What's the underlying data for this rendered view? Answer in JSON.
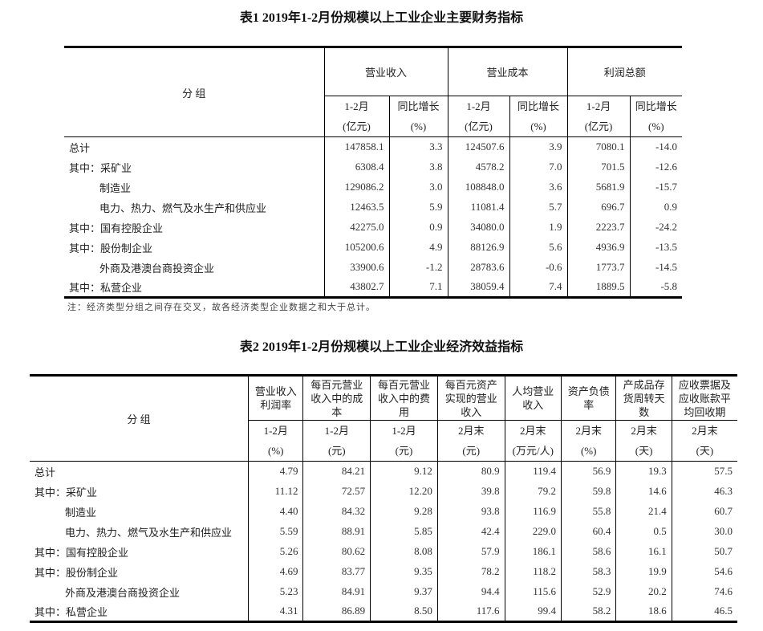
{
  "table1": {
    "title": "表1  2019年1-2月份规模以上工业企业主要财务指标",
    "group_header": "分  组",
    "col_groups": [
      "营业收入",
      "营业成本",
      "利润总额"
    ],
    "sub_headers": [
      {
        "period": "1-2月",
        "unit": "(亿元)"
      },
      {
        "period": "同比增长",
        "unit": "(%)"
      },
      {
        "period": "1-2月",
        "unit": "(亿元)"
      },
      {
        "period": "同比增长",
        "unit": "(%)"
      },
      {
        "period": "1-2月",
        "unit": "(亿元)"
      },
      {
        "period": "同比增长",
        "unit": "(%)"
      }
    ],
    "rows": [
      {
        "label": "总计",
        "values": [
          "147858.1",
          "3.3",
          "124507.6",
          "3.9",
          "7080.1",
          "-14.0"
        ]
      },
      {
        "label": "其中：采矿业",
        "values": [
          "6308.4",
          "3.8",
          "4578.2",
          "7.0",
          "701.5",
          "-12.6"
        ]
      },
      {
        "label": "制造业",
        "values": [
          "129086.2",
          "3.0",
          "108848.0",
          "3.6",
          "5681.9",
          "-15.7"
        ]
      },
      {
        "label": "电力、热力、燃气及水生产和供应业",
        "values": [
          "12463.5",
          "5.9",
          "11081.4",
          "5.7",
          "696.7",
          "0.9"
        ]
      },
      {
        "label": "其中：国有控股企业",
        "values": [
          "42275.0",
          "0.9",
          "34080.0",
          "1.9",
          "2223.7",
          "-24.2"
        ]
      },
      {
        "label": "其中：股份制企业",
        "values": [
          "105200.6",
          "4.9",
          "88126.9",
          "5.6",
          "4936.9",
          "-13.5"
        ]
      },
      {
        "label": "外商及港澳台商投资企业",
        "values": [
          "33900.6",
          "-1.2",
          "28783.6",
          "-0.6",
          "1773.7",
          "-14.5"
        ]
      },
      {
        "label": "其中：私营企业",
        "values": [
          "43802.7",
          "7.1",
          "38059.4",
          "7.4",
          "1889.5",
          "-5.8"
        ]
      }
    ],
    "note": "注：经济类型分组之间存在交叉，故各经济类型企业数据之和大于总计。"
  },
  "table2": {
    "title": "表2  2019年1-2月份规模以上工业企业经济效益指标",
    "group_header": "分  组",
    "columns": [
      {
        "name": "营业收入利润率",
        "period": "1-2月",
        "unit": "(%)"
      },
      {
        "name": "每百元营业收入中的成本",
        "period": "1-2月",
        "unit": "(元)"
      },
      {
        "name": "每百元营业收入中的费用",
        "period": "1-2月",
        "unit": "(元)"
      },
      {
        "name": "每百元资产实现的营业收入",
        "period": "2月末",
        "unit": "(元)"
      },
      {
        "name": "人均营业收入",
        "period": "2月末",
        "unit": "(万元/人)"
      },
      {
        "name": "资产负债率",
        "period": "2月末",
        "unit": "(%)"
      },
      {
        "name": "产成品存货周转天数",
        "period": "2月末",
        "unit": "(天)"
      },
      {
        "name": "应收票据及应收账款平均回收期",
        "period": "2月末",
        "unit": "(天)"
      }
    ],
    "rows": [
      {
        "label": "总计",
        "values": [
          "4.79",
          "84.21",
          "9.12",
          "80.9",
          "119.4",
          "56.9",
          "19.3",
          "57.5"
        ]
      },
      {
        "label": "其中：采矿业",
        "values": [
          "11.12",
          "72.57",
          "12.20",
          "39.8",
          "79.2",
          "59.8",
          "14.6",
          "46.3"
        ]
      },
      {
        "label": "制造业",
        "values": [
          "4.40",
          "84.32",
          "9.28",
          "93.8",
          "116.9",
          "55.8",
          "21.4",
          "60.7"
        ]
      },
      {
        "label": "电力、热力、燃气及水生产和供应业",
        "values": [
          "5.59",
          "88.91",
          "5.85",
          "42.4",
          "229.0",
          "60.4",
          "0.5",
          "30.0"
        ]
      },
      {
        "label": "其中：国有控股企业",
        "values": [
          "5.26",
          "80.62",
          "8.08",
          "57.9",
          "186.1",
          "58.6",
          "16.1",
          "50.7"
        ]
      },
      {
        "label": "其中：股份制企业",
        "values": [
          "4.69",
          "83.77",
          "9.35",
          "78.2",
          "118.2",
          "58.3",
          "19.9",
          "54.6"
        ]
      },
      {
        "label": "外商及港澳台商投资企业",
        "values": [
          "5.23",
          "84.91",
          "9.37",
          "94.4",
          "115.6",
          "52.9",
          "20.2",
          "74.6"
        ]
      },
      {
        "label": "其中：私营企业",
        "values": [
          "4.31",
          "86.89",
          "8.50",
          "117.6",
          "99.4",
          "58.2",
          "18.6",
          "46.5"
        ]
      }
    ]
  }
}
